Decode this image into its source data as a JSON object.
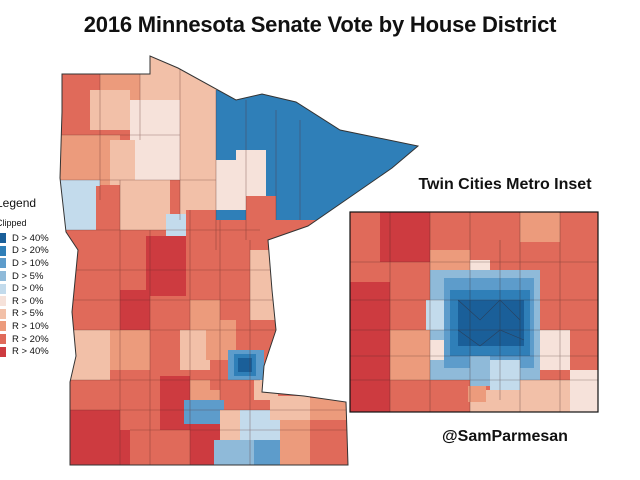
{
  "title": "2016 Minnesota Senate Vote by House District",
  "inset_title": "Twin Cities Metro Inset",
  "credit": "@SamParmesan",
  "legend": {
    "title": "Legend",
    "subtitle": "Clipped",
    "items": [
      {
        "label": "D > 40%",
        "color": "#1a5f99"
      },
      {
        "label": "D > 20%",
        "color": "#2f7fb8"
      },
      {
        "label": "D > 10%",
        "color": "#5d9ccb"
      },
      {
        "label": "D > 5%",
        "color": "#8fbad9"
      },
      {
        "label": "D > 0%",
        "color": "#c3dbec"
      },
      {
        "label": "R > 0%",
        "color": "#f6e2da"
      },
      {
        "label": "R > 5%",
        "color": "#f2c0a8"
      },
      {
        "label": "R > 10%",
        "color": "#ec9b7c"
      },
      {
        "label": "R > 20%",
        "color": "#e06a5a"
      },
      {
        "label": "R > 40%",
        "color": "#cd3b40"
      }
    ]
  }
}
